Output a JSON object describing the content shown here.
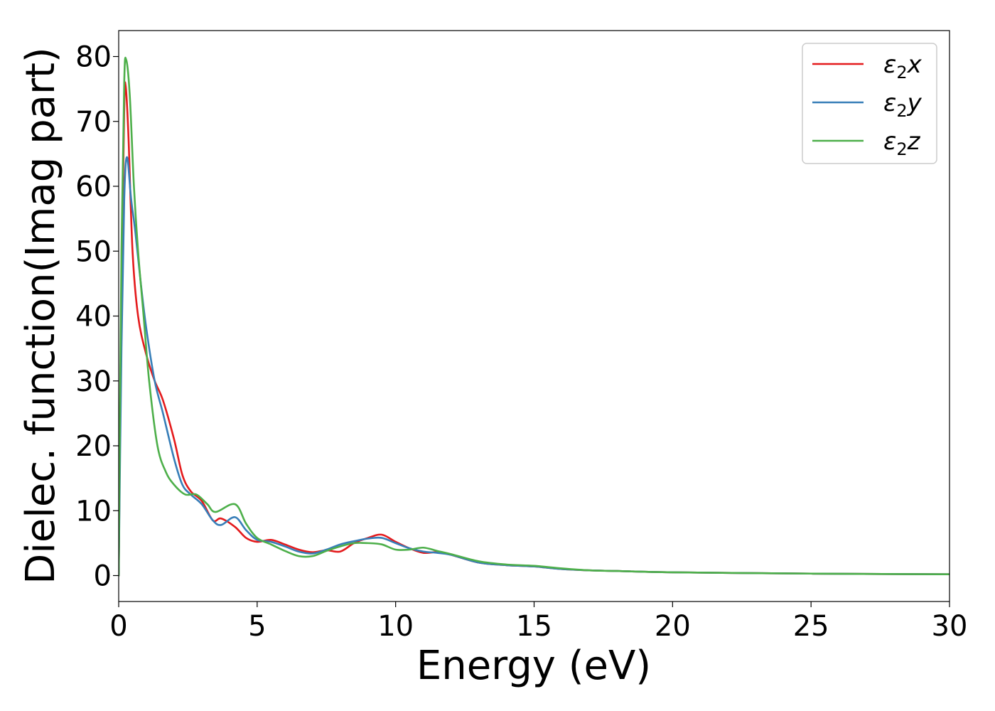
{
  "chart_data": {
    "type": "line",
    "xlabel": "Energy (eV)",
    "ylabel": "Dielec. function(Imag part)",
    "xlim": [
      0,
      30
    ],
    "ylim": [
      -4,
      84
    ],
    "xticks": [
      0,
      5,
      10,
      15,
      20,
      25,
      30
    ],
    "yticks": [
      0,
      10,
      20,
      30,
      40,
      50,
      60,
      70,
      80
    ],
    "grid": false,
    "legend_position": "top-right",
    "series": [
      {
        "name": "ε₂x",
        "legend": {
          "base": "ε",
          "sub": "2",
          "axis": "x"
        },
        "color": "#e41a1c",
        "points": [
          [
            0,
            0
          ],
          [
            0.1,
            45
          ],
          [
            0.2,
            72
          ],
          [
            0.25,
            75.5
          ],
          [
            0.35,
            68
          ],
          [
            0.5,
            50
          ],
          [
            0.7,
            40
          ],
          [
            1.0,
            34
          ],
          [
            1.3,
            30
          ],
          [
            1.6,
            27
          ],
          [
            2.0,
            21
          ],
          [
            2.3,
            15.5
          ],
          [
            2.6,
            13
          ],
          [
            3.0,
            11.5
          ],
          [
            3.4,
            8.5
          ],
          [
            3.7,
            8.8
          ],
          [
            4.2,
            7.5
          ],
          [
            4.6,
            5.8
          ],
          [
            5.0,
            5.2
          ],
          [
            5.5,
            5.5
          ],
          [
            6.0,
            4.8
          ],
          [
            6.5,
            4.0
          ],
          [
            7.0,
            3.6
          ],
          [
            7.5,
            3.9
          ],
          [
            8.0,
            3.7
          ],
          [
            8.5,
            5.0
          ],
          [
            9.0,
            5.8
          ],
          [
            9.5,
            6.3
          ],
          [
            10.0,
            5.2
          ],
          [
            10.5,
            4.2
          ],
          [
            11.0,
            3.5
          ],
          [
            11.5,
            3.6
          ],
          [
            12.0,
            3.2
          ],
          [
            13.0,
            2.0
          ],
          [
            14.0,
            1.6
          ],
          [
            15.0,
            1.4
          ],
          [
            16.0,
            1.0
          ],
          [
            17.0,
            0.8
          ],
          [
            18.0,
            0.7
          ],
          [
            20.0,
            0.5
          ],
          [
            25.0,
            0.3
          ],
          [
            30.0,
            0.2
          ]
        ]
      },
      {
        "name": "ε₂y",
        "legend": {
          "base": "ε",
          "sub": "2",
          "axis": "y"
        },
        "color": "#377eb8",
        "points": [
          [
            0,
            0
          ],
          [
            0.1,
            35
          ],
          [
            0.2,
            58
          ],
          [
            0.3,
            64.5
          ],
          [
            0.45,
            58
          ],
          [
            0.6,
            53
          ],
          [
            0.8,
            45
          ],
          [
            1.0,
            38
          ],
          [
            1.3,
            30
          ],
          [
            1.6,
            25
          ],
          [
            2.0,
            18
          ],
          [
            2.3,
            14
          ],
          [
            2.6,
            12.5
          ],
          [
            3.0,
            11
          ],
          [
            3.4,
            8.5
          ],
          [
            3.7,
            7.8
          ],
          [
            4.2,
            9.0
          ],
          [
            4.6,
            7.0
          ],
          [
            5.0,
            5.5
          ],
          [
            5.5,
            5.2
          ],
          [
            6.0,
            4.5
          ],
          [
            6.5,
            3.7
          ],
          [
            7.0,
            3.4
          ],
          [
            7.5,
            4.0
          ],
          [
            8.0,
            4.8
          ],
          [
            8.5,
            5.3
          ],
          [
            9.0,
            5.7
          ],
          [
            9.5,
            5.8
          ],
          [
            10.0,
            5.0
          ],
          [
            10.5,
            4.2
          ],
          [
            11.0,
            3.7
          ],
          [
            11.5,
            3.5
          ],
          [
            12.0,
            3.2
          ],
          [
            13.0,
            2.0
          ],
          [
            14.0,
            1.6
          ],
          [
            15.0,
            1.4
          ],
          [
            16.0,
            1.0
          ],
          [
            17.0,
            0.8
          ],
          [
            18.0,
            0.7
          ],
          [
            20.0,
            0.5
          ],
          [
            25.0,
            0.3
          ],
          [
            30.0,
            0.2
          ]
        ]
      },
      {
        "name": "ε₂z",
        "legend": {
          "base": "ε",
          "sub": "2",
          "axis": "z"
        },
        "color": "#4daf4a",
        "points": [
          [
            0,
            0
          ],
          [
            0.1,
            50
          ],
          [
            0.2,
            76
          ],
          [
            0.27,
            79.5
          ],
          [
            0.4,
            74
          ],
          [
            0.55,
            60
          ],
          [
            0.7,
            50
          ],
          [
            0.9,
            40
          ],
          [
            1.1,
            30
          ],
          [
            1.4,
            20
          ],
          [
            1.7,
            16
          ],
          [
            2.0,
            14
          ],
          [
            2.4,
            12.5
          ],
          [
            2.8,
            12.5
          ],
          [
            3.2,
            11
          ],
          [
            3.5,
            9.8
          ],
          [
            4.2,
            11
          ],
          [
            4.6,
            8
          ],
          [
            5.0,
            5.8
          ],
          [
            5.5,
            4.8
          ],
          [
            6.0,
            3.8
          ],
          [
            6.5,
            3.0
          ],
          [
            7.0,
            3.0
          ],
          [
            7.5,
            3.8
          ],
          [
            8.0,
            4.5
          ],
          [
            8.5,
            5.0
          ],
          [
            9.0,
            5.0
          ],
          [
            9.5,
            4.8
          ],
          [
            10.0,
            4.0
          ],
          [
            10.5,
            4.0
          ],
          [
            11.0,
            4.3
          ],
          [
            11.5,
            3.8
          ],
          [
            12.0,
            3.3
          ],
          [
            13.0,
            2.2
          ],
          [
            14.0,
            1.7
          ],
          [
            15.0,
            1.5
          ],
          [
            16.0,
            1.1
          ],
          [
            17.0,
            0.8
          ],
          [
            18.0,
            0.7
          ],
          [
            20.0,
            0.5
          ],
          [
            25.0,
            0.3
          ],
          [
            30.0,
            0.2
          ]
        ]
      }
    ]
  }
}
